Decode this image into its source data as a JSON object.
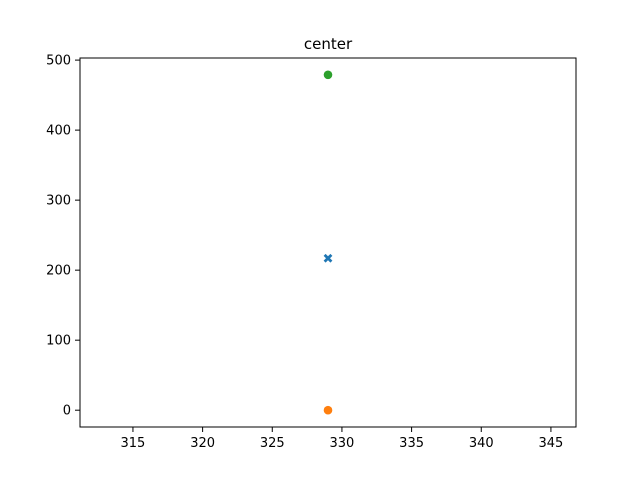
{
  "chart_data": {
    "type": "scatter",
    "title": "center",
    "xlabel": "",
    "ylabel": "",
    "xlim": [
      311.2,
      346.8
    ],
    "ylim": [
      -24,
      503
    ],
    "xticks": [
      315,
      320,
      325,
      330,
      335,
      340,
      345
    ],
    "yticks": [
      0,
      100,
      200,
      300,
      400,
      500
    ],
    "grid": false,
    "series": [
      {
        "points": [
          {
            "x": 329,
            "y": 217
          }
        ],
        "marker": "x",
        "color": "#1f77b4"
      },
      {
        "points": [
          {
            "x": 329,
            "y": 0
          }
        ],
        "marker": "o",
        "color": "#ff7f0e"
      },
      {
        "points": [
          {
            "x": 329,
            "y": 479
          }
        ],
        "marker": "o",
        "color": "#2ca02c"
      }
    ]
  }
}
